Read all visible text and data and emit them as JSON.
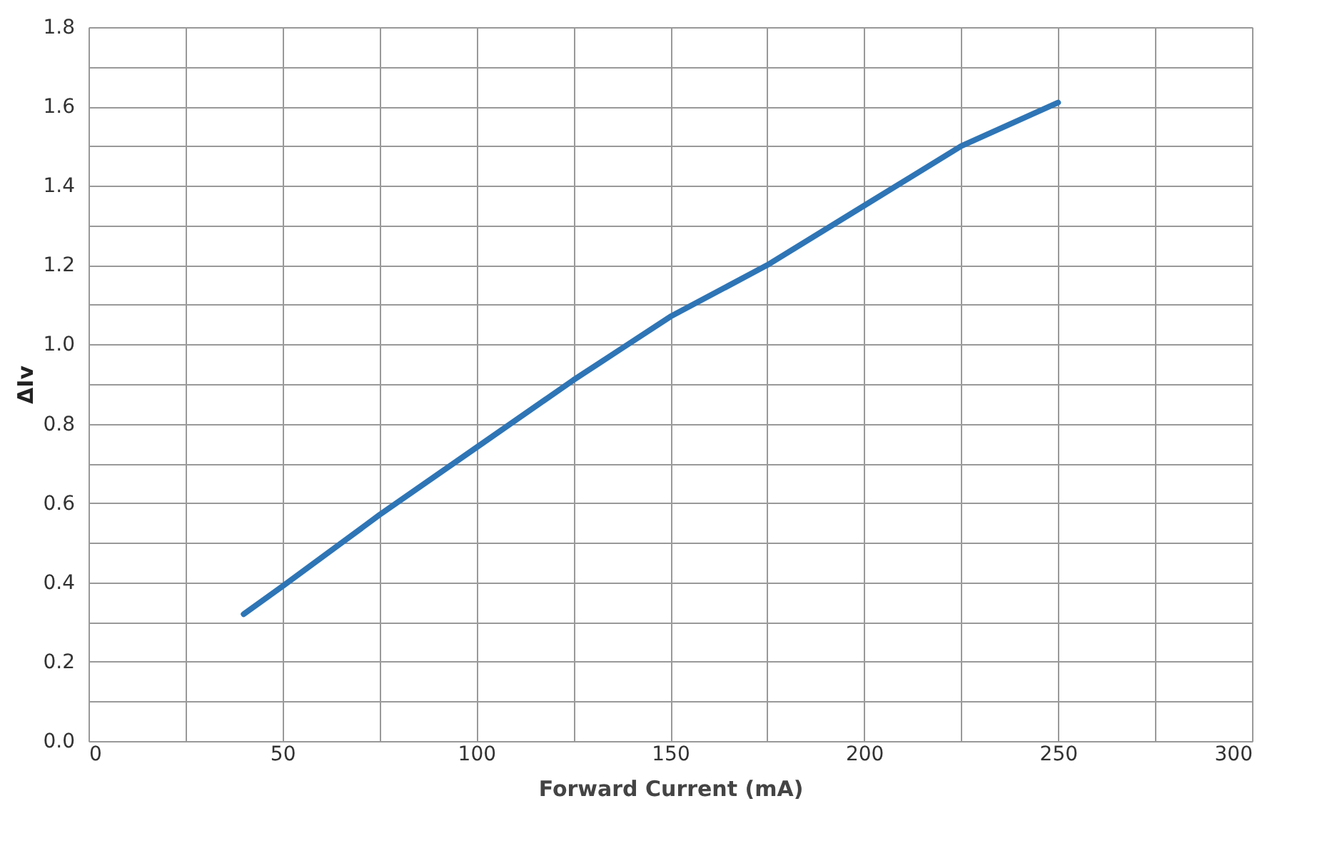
{
  "chart_data": {
    "type": "line",
    "xlabel": "Forward Current (mA)",
    "ylabel": "ΔIv",
    "x": [
      40,
      50,
      75,
      100,
      125,
      137.5,
      150,
      175,
      200,
      225,
      250
    ],
    "series": [
      {
        "color": "#2e75b6",
        "values": [
          0.32,
          0.39,
          0.57,
          0.74,
          0.91,
          0.99,
          1.07,
          1.2,
          1.35,
          1.5,
          1.61
        ]
      }
    ],
    "xlim": [
      0,
      300
    ],
    "ylim": [
      0,
      1.8
    ],
    "xticks": [
      0,
      {
        "value": 25,
        "label": null
      },
      50,
      {
        "value": 75,
        "label": null
      },
      100,
      {
        "value": 125,
        "label": null
      },
      150,
      {
        "value": 175,
        "label": null
      },
      200,
      {
        "value": 225,
        "label": null
      },
      250,
      {
        "value": 275,
        "label": null
      },
      300
    ],
    "yticks": [
      {
        "value": 0,
        "label": "0.0"
      },
      {
        "value": 0.1,
        "label": null
      },
      0.2,
      {
        "value": 0.3,
        "label": null
      },
      0.4,
      {
        "value": 0.5,
        "label": null
      },
      0.6,
      {
        "value": 0.7,
        "label": null
      },
      0.8,
      {
        "value": 0.9,
        "label": null
      },
      {
        "value": 1.0,
        "label": "1.0"
      },
      {
        "value": 1.1,
        "label": null
      },
      1.2,
      {
        "value": 1.3,
        "label": null
      },
      1.4,
      {
        "value": 1.5,
        "label": null
      },
      1.6,
      {
        "value": 1.7,
        "label": null
      },
      1.8
    ],
    "grid": true,
    "marker": "none",
    "line_style": "solid"
  }
}
